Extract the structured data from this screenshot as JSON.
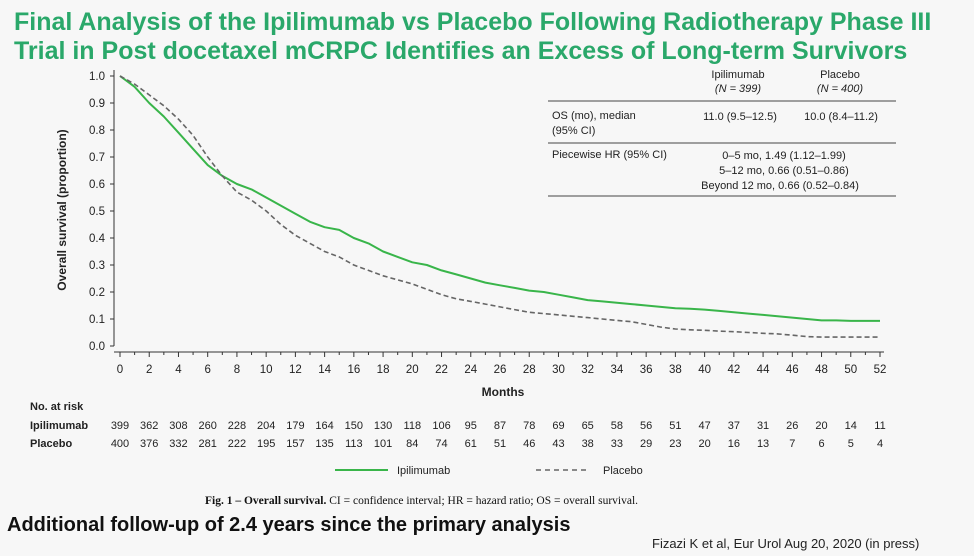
{
  "title": {
    "line1": "Final Analysis of the Ipilimumab vs Placebo Following Radiotherapy Phase III",
    "line2": "Trial in Post docetaxel mCRPC Identifies an Excess of Long-term Survivors",
    "color": "#2aa86a"
  },
  "chart_data": {
    "type": "line",
    "title": "",
    "xlabel": "Months",
    "ylabel": "Overall survival (proportion)",
    "xlim": [
      0,
      52
    ],
    "ylim": [
      0,
      1.0
    ],
    "x_ticks": [
      0,
      2,
      4,
      6,
      8,
      10,
      12,
      14,
      16,
      18,
      20,
      22,
      24,
      26,
      28,
      30,
      32,
      34,
      36,
      38,
      40,
      42,
      44,
      46,
      48,
      50,
      52
    ],
    "y_ticks": [
      "0.0",
      "0.1",
      "0.2",
      "0.3",
      "0.4",
      "0.5",
      "0.6",
      "0.7",
      "0.8",
      "0.9",
      "1.0"
    ],
    "grid": false,
    "legend_position": "bottom",
    "series": [
      {
        "name": "Ipilimumab",
        "color": "#39b54a",
        "style": "solid",
        "x": [
          0,
          1,
          2,
          3,
          4,
          5,
          6,
          7,
          8,
          9,
          10,
          11,
          12,
          13,
          14,
          15,
          16,
          17,
          18,
          19,
          20,
          21,
          22,
          23,
          24,
          25,
          26,
          27,
          28,
          29,
          30,
          31,
          32,
          33,
          34,
          35,
          36,
          37,
          38,
          39,
          40,
          41,
          42,
          43,
          44,
          45,
          46,
          47,
          48,
          49,
          50,
          51,
          52
        ],
        "y": [
          1.0,
          0.96,
          0.9,
          0.85,
          0.79,
          0.73,
          0.67,
          0.63,
          0.6,
          0.58,
          0.55,
          0.52,
          0.49,
          0.46,
          0.44,
          0.43,
          0.4,
          0.38,
          0.35,
          0.33,
          0.31,
          0.3,
          0.28,
          0.265,
          0.25,
          0.235,
          0.225,
          0.215,
          0.205,
          0.2,
          0.19,
          0.18,
          0.17,
          0.165,
          0.16,
          0.155,
          0.15,
          0.145,
          0.14,
          0.138,
          0.135,
          0.13,
          0.125,
          0.12,
          0.115,
          0.11,
          0.105,
          0.1,
          0.095,
          0.095,
          0.093,
          0.093,
          0.093
        ]
      },
      {
        "name": "Placebo",
        "color": "#666666",
        "style": "dashed",
        "x": [
          0,
          1,
          2,
          3,
          4,
          5,
          6,
          7,
          8,
          9,
          10,
          11,
          12,
          13,
          14,
          15,
          16,
          17,
          18,
          19,
          20,
          21,
          22,
          23,
          24,
          25,
          26,
          27,
          28,
          29,
          30,
          31,
          32,
          33,
          34,
          35,
          36,
          37,
          38,
          39,
          40,
          41,
          42,
          43,
          44,
          45,
          46,
          47,
          48,
          49,
          50,
          51,
          52
        ],
        "y": [
          1.0,
          0.97,
          0.93,
          0.89,
          0.84,
          0.78,
          0.7,
          0.63,
          0.57,
          0.54,
          0.5,
          0.45,
          0.41,
          0.38,
          0.35,
          0.33,
          0.3,
          0.28,
          0.26,
          0.245,
          0.23,
          0.21,
          0.19,
          0.175,
          0.165,
          0.155,
          0.145,
          0.135,
          0.125,
          0.12,
          0.115,
          0.11,
          0.105,
          0.1,
          0.095,
          0.09,
          0.08,
          0.07,
          0.063,
          0.06,
          0.058,
          0.055,
          0.053,
          0.05,
          0.047,
          0.045,
          0.04,
          0.035,
          0.033,
          0.033,
          0.033,
          0.033,
          0.033
        ]
      }
    ],
    "risk_table": {
      "header": "No. at risk",
      "rows": [
        {
          "label": "Ipilimumab",
          "values": [
            399,
            362,
            308,
            260,
            228,
            204,
            179,
            164,
            150,
            130,
            118,
            106,
            95,
            87,
            78,
            69,
            65,
            58,
            56,
            51,
            47,
            37,
            31,
            26,
            20,
            14,
            11
          ]
        },
        {
          "label": "Placebo",
          "values": [
            400,
            376,
            332,
            281,
            222,
            195,
            157,
            135,
            113,
            101,
            84,
            74,
            61,
            51,
            46,
            43,
            38,
            33,
            29,
            23,
            20,
            16,
            13,
            7,
            6,
            5,
            4
          ]
        }
      ]
    },
    "inset_table": {
      "col1_line1": "Ipilimumab",
      "col1_line2": "(N = 399)",
      "col2_line1": "Placebo",
      "col2_line2": "(N = 400)",
      "row1_label_line1": "OS (mo), median",
      "row1_label_line2": "(95% CI)",
      "row1_v1": "11.0 (9.5–12.5)",
      "row1_v2": "10.0 (8.4–11.2)",
      "row2_label": "Piecewise HR (95% CI)",
      "row2_line1": "0–5 mo, 1.49 (1.12–1.99)",
      "row2_line2": "5–12 mo, 0.66 (0.51–0.86)",
      "row2_line3": "Beyond 12 mo, 0.66 (0.52–0.84)"
    }
  },
  "caption": {
    "prefix": "Fig. 1 – Overall survival.",
    "text": " CI = confidence interval; HR = hazard ratio; OS = overall survival."
  },
  "footer_note": "Additional follow-up of 2.4 years since the primary analysis",
  "citation": "Fizazi K et al, Eur Urol  Aug 20, 2020 (in press)"
}
